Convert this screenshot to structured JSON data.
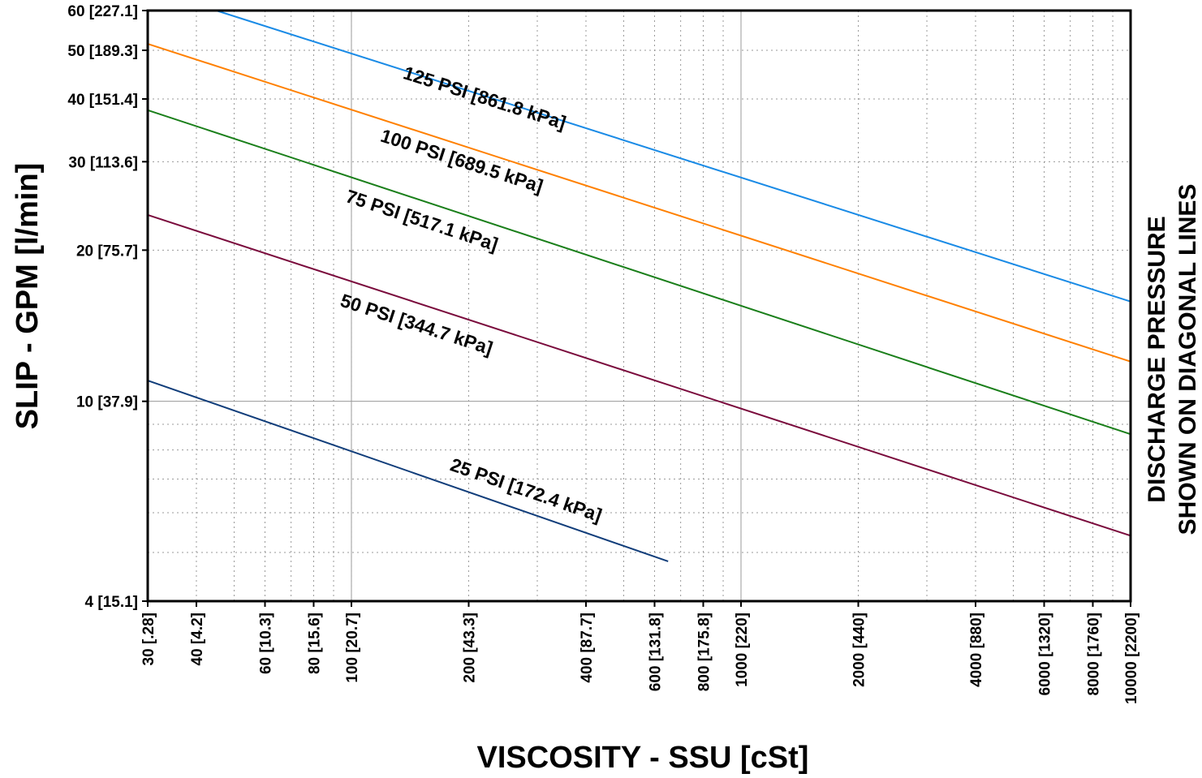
{
  "chart_data": {
    "type": "line",
    "xscale": "log",
    "yscale": "log",
    "xlim": [
      30,
      10000
    ],
    "ylim": [
      4,
      60
    ],
    "grid": true,
    "xlabel": "VISCOSITY - SSU [cSt]",
    "ylabel": "SLIP - GPM [l/min]",
    "side_label": [
      "DISCHARGE PRESSURE",
      "SHOWN ON DIAGONAL LINES"
    ],
    "x_ticks": [
      {
        "value": 30,
        "label": "30 [.28]"
      },
      {
        "value": 40,
        "label": "40 [4.2]"
      },
      {
        "value": 60,
        "label": "60 [10.3]"
      },
      {
        "value": 80,
        "label": "80 [15.6]"
      },
      {
        "value": 100,
        "label": "100 [20.7]"
      },
      {
        "value": 200,
        "label": "200 [43.3]"
      },
      {
        "value": 400,
        "label": "400 [87.7]"
      },
      {
        "value": 600,
        "label": "600 [131.8]"
      },
      {
        "value": 800,
        "label": "800 [175.8]"
      },
      {
        "value": 1000,
        "label": "1000 [220]"
      },
      {
        "value": 2000,
        "label": "2000 [440]"
      },
      {
        "value": 4000,
        "label": "4000 [880]"
      },
      {
        "value": 6000,
        "label": "6000 [1320]"
      },
      {
        "value": 8000,
        "label": "8000 [1760]"
      },
      {
        "value": 10000,
        "label": "10000 [2200]"
      }
    ],
    "y_ticks": [
      {
        "value": 4,
        "label": "4 [15.1]"
      },
      {
        "value": 10,
        "label": "10 [37.9]"
      },
      {
        "value": 20,
        "label": "20 [75.7]"
      },
      {
        "value": 30,
        "label": "30 [113.6]"
      },
      {
        "value": 40,
        "label": "40 [151.4]"
      },
      {
        "value": 50,
        "label": "50 [189.3]"
      },
      {
        "value": 60,
        "label": "60 [227.1]"
      }
    ],
    "x_minor_grid": [
      30,
      40,
      50,
      60,
      70,
      80,
      90,
      100,
      200,
      300,
      400,
      500,
      600,
      700,
      800,
      900,
      1000,
      2000,
      3000,
      4000,
      5000,
      6000,
      7000,
      8000,
      9000,
      10000
    ],
    "x_major_grid": [
      100,
      1000
    ],
    "y_minor_grid": [
      5,
      6,
      7,
      8,
      9,
      20,
      30,
      40,
      50
    ],
    "y_major_grid": [
      10
    ],
    "series": [
      {
        "name": "125 PSI [861.8 kPa]",
        "color": "#1a8be6",
        "x": [
          45,
          10000
        ],
        "y": [
          60,
          15.8
        ]
      },
      {
        "name": "100 PSI [689.5 kPa]",
        "color": "#ff8000",
        "x": [
          30,
          10000
        ],
        "y": [
          51.5,
          12.0
        ]
      },
      {
        "name": "75 PSI [517.1 kPa]",
        "color": "#1a7f1a",
        "x": [
          30,
          10000
        ],
        "y": [
          38.0,
          8.6
        ]
      },
      {
        "name": "50 PSI [344.7 kPa]",
        "color": "#7a0a3c",
        "x": [
          30,
          10000
        ],
        "y": [
          23.5,
          5.4
        ]
      },
      {
        "name": "25 PSI [172.4 kPa]",
        "color": "#103d7a",
        "x": [
          30,
          650
        ],
        "y": [
          11.0,
          4.8
        ]
      }
    ],
    "annotations": [
      {
        "series": 0,
        "x": 135,
        "y": 44.0
      },
      {
        "series": 1,
        "x": 118,
        "y": 33.0
      },
      {
        "series": 2,
        "x": 96,
        "y": 25.0
      },
      {
        "series": 3,
        "x": 93,
        "y": 15.5
      },
      {
        "series": 4,
        "x": 178,
        "y": 7.3
      }
    ]
  }
}
